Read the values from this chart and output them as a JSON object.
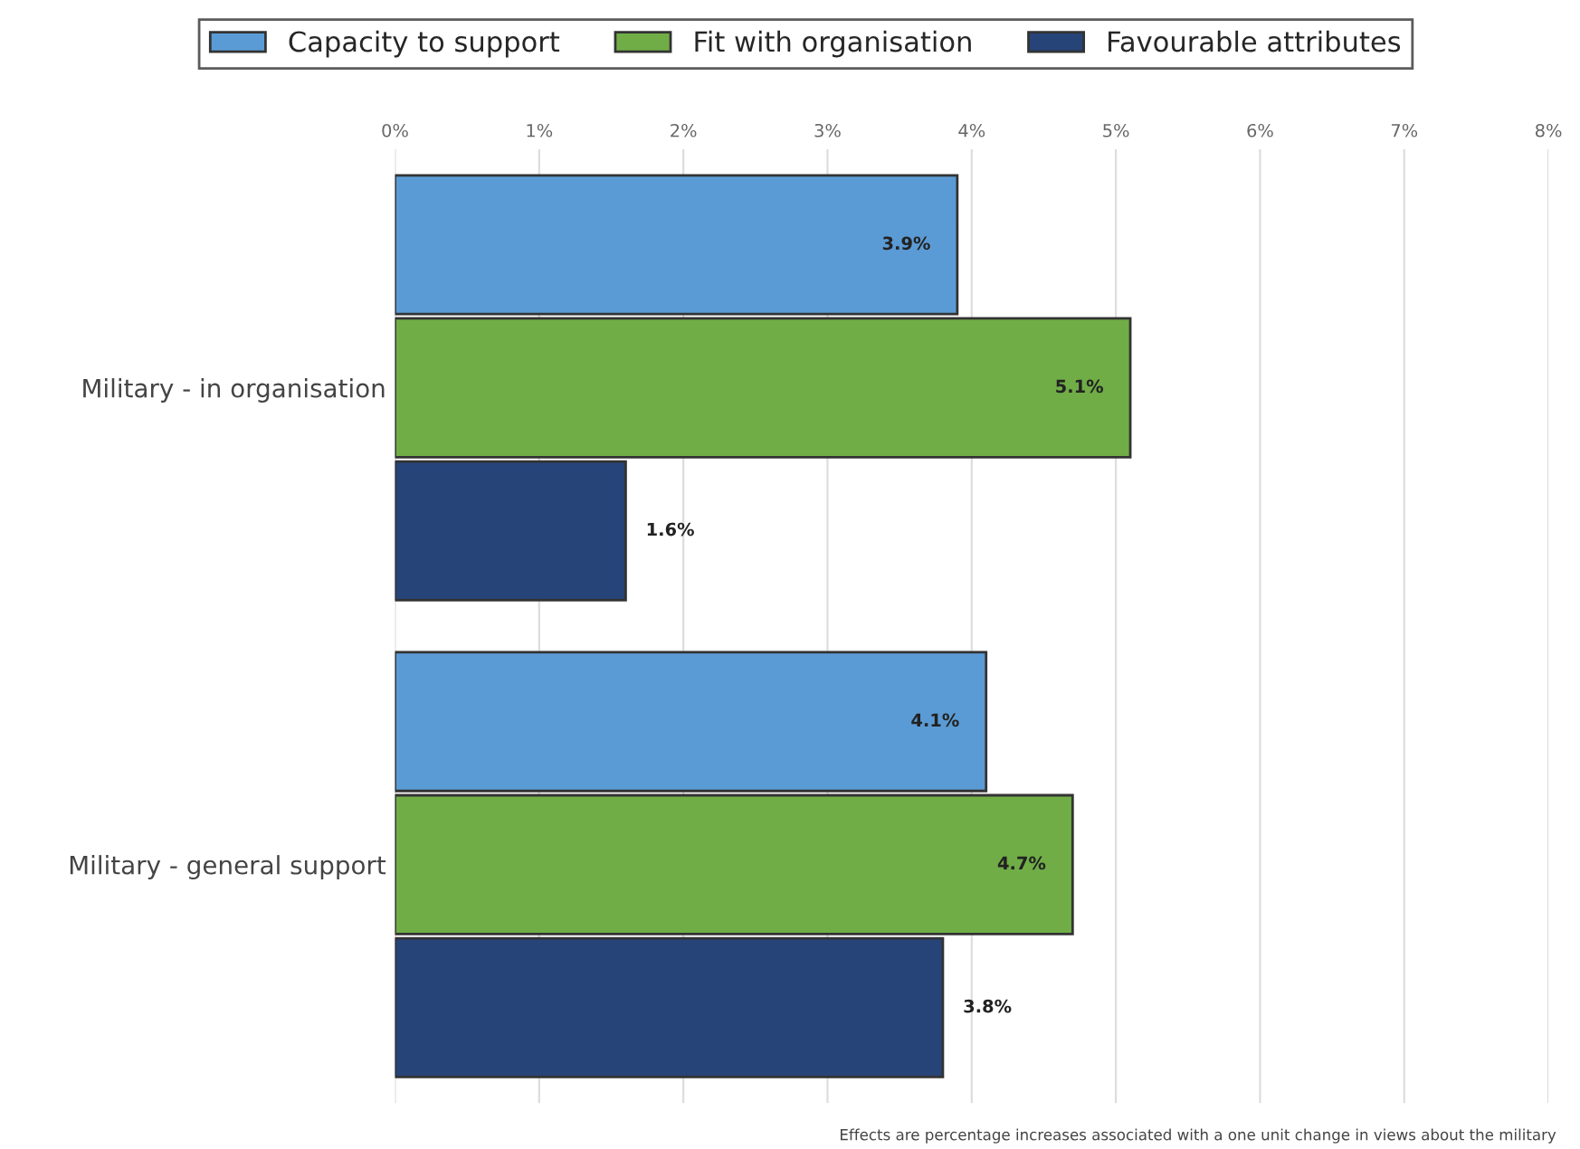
{
  "chart_data": {
    "type": "bar",
    "orientation": "horizontal",
    "categories": [
      "Military - in organisation",
      "Military - general support"
    ],
    "series": [
      {
        "name": "Capacity to support",
        "color": "#5b9bd5",
        "values": [
          3.9,
          4.1
        ],
        "value_labels": [
          "3.9%",
          "4.1%"
        ]
      },
      {
        "name": "Fit with organisation",
        "color": "#70ad47",
        "values": [
          5.1,
          4.7
        ],
        "value_labels": [
          "5.1%",
          "4.7%"
        ]
      },
      {
        "name": "Favourable attributes",
        "color": "#264478",
        "values": [
          1.6,
          3.8
        ],
        "value_labels": [
          "1.6%",
          "3.8%"
        ]
      }
    ],
    "xlim": [
      0,
      8
    ],
    "xticks": [
      {
        "value": 0,
        "label": "0%"
      },
      {
        "value": 1,
        "label": "1%"
      },
      {
        "value": 2,
        "label": "2%"
      },
      {
        "value": 3,
        "label": "3%"
      },
      {
        "value": 4,
        "label": "4%"
      },
      {
        "value": 5,
        "label": "5%"
      },
      {
        "value": 6,
        "label": "6%"
      },
      {
        "value": 7,
        "label": "7%"
      },
      {
        "value": 8,
        "label": "8%"
      }
    ],
    "grid": "x",
    "legend": "top",
    "annotations": [
      "Effects are percentage increases associated with a one unit change in views about the military"
    ]
  }
}
